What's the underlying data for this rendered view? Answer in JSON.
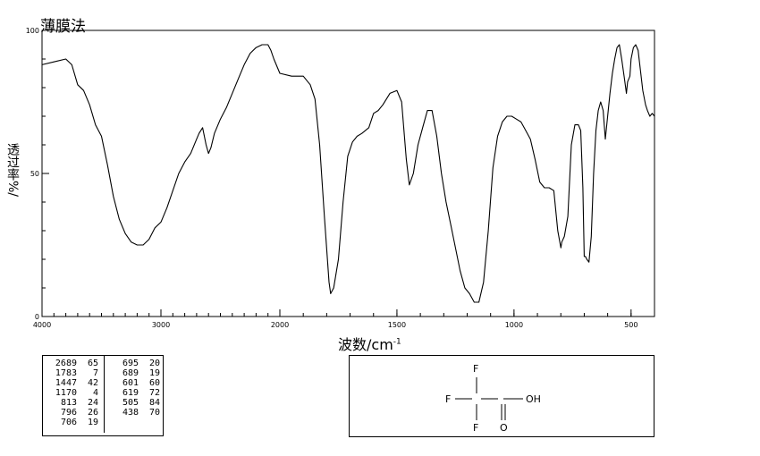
{
  "title": "薄膜法",
  "chart_data": {
    "type": "line",
    "xlabel": "波数/cm",
    "xlabel_sup": "-1",
    "ylabel": "透过率",
    "ylabel_prefix": "%/",
    "xlim": [
      4000,
      400
    ],
    "ylim": [
      0,
      100
    ],
    "x_ticks": [
      4000,
      3000,
      2000,
      1500,
      1000,
      500
    ],
    "x_tick_labels": [
      "4000",
      "3000",
      "2000",
      "1500",
      "1000",
      "500"
    ],
    "y_ticks": [
      0,
      50,
      100
    ],
    "y_tick_labels": [
      "0",
      "50",
      "100"
    ],
    "grid": false,
    "series": [
      {
        "x": [
          4000,
          3900,
          3800,
          3750,
          3700,
          3650,
          3600,
          3550,
          3500,
          3450,
          3400,
          3350,
          3300,
          3250,
          3200,
          3150,
          3100,
          3050,
          3000,
          2950,
          2900,
          2850,
          2800,
          2750,
          2700,
          2680,
          2650,
          2620,
          2600,
          2580,
          2550,
          2500,
          2450,
          2400,
          2350,
          2300,
          2250,
          2200,
          2150,
          2100,
          2075,
          2050,
          2000,
          1950,
          1900,
          1870,
          1850,
          1830,
          1810,
          1790,
          1783,
          1770,
          1750,
          1730,
          1710,
          1690,
          1670,
          1650,
          1620,
          1600,
          1580,
          1560,
          1530,
          1500,
          1480,
          1460,
          1447,
          1430,
          1410,
          1390,
          1370,
          1350,
          1330,
          1310,
          1290,
          1270,
          1250,
          1230,
          1210,
          1190,
          1170,
          1150,
          1130,
          1110,
          1090,
          1070,
          1050,
          1030,
          1010,
          990,
          970,
          950,
          930,
          910,
          890,
          870,
          850,
          830,
          813,
          800,
          796,
          785,
          770,
          755,
          740,
          725,
          715,
          706,
          700,
          695,
          689,
          680,
          670,
          660,
          650,
          640,
          630,
          619,
          610,
          600,
          590,
          580,
          570,
          560,
          550,
          540,
          530,
          520,
          515,
          505,
          500,
          490,
          480,
          470,
          460,
          450,
          438,
          430,
          420,
          410,
          400
        ],
        "y": [
          88,
          89,
          90,
          88,
          81,
          79,
          74,
          67,
          63,
          53,
          42,
          34,
          29,
          26,
          25,
          25,
          27,
          31,
          33,
          38,
          44,
          50,
          54,
          57,
          62,
          64,
          66,
          60,
          57,
          59,
          64,
          69,
          73,
          78,
          83,
          88,
          92,
          94,
          95,
          95,
          93,
          90,
          85,
          84,
          84,
          81,
          76,
          60,
          35,
          12,
          8,
          10,
          20,
          40,
          56,
          61,
          63,
          64,
          66,
          71,
          72,
          74,
          78,
          79,
          75,
          55,
          46,
          50,
          60,
          66,
          72,
          72,
          63,
          50,
          40,
          32,
          24,
          16,
          10,
          8,
          5,
          5,
          12,
          30,
          52,
          63,
          68,
          70,
          70,
          69,
          68,
          65,
          62,
          55,
          47,
          45,
          45,
          44,
          30,
          24,
          26,
          28,
          35,
          60,
          67,
          67,
          65,
          45,
          21,
          21,
          20,
          19,
          28,
          50,
          65,
          72,
          75,
          72,
          62,
          70,
          78,
          85,
          90,
          94,
          95,
          90,
          84,
          78,
          82,
          84,
          90,
          94,
          95,
          93,
          86,
          79,
          74,
          72,
          70,
          71,
          70
        ]
      }
    ]
  },
  "peak_table": {
    "columns": [
      [
        {
          "wavenumber": "2689",
          "transmittance": "65"
        },
        {
          "wavenumber": "1783",
          "transmittance": "7"
        },
        {
          "wavenumber": "1447",
          "transmittance": "42"
        },
        {
          "wavenumber": "1170",
          "transmittance": "4"
        },
        {
          "wavenumber": "813",
          "transmittance": "24"
        },
        {
          "wavenumber": "796",
          "transmittance": "26"
        },
        {
          "wavenumber": "706",
          "transmittance": "19"
        }
      ],
      [
        {
          "wavenumber": "695",
          "transmittance": "20"
        },
        {
          "wavenumber": "689",
          "transmittance": "19"
        },
        {
          "wavenumber": "601",
          "transmittance": "60"
        },
        {
          "wavenumber": "619",
          "transmittance": "72"
        },
        {
          "wavenumber": "505",
          "transmittance": "84"
        },
        {
          "wavenumber": "438",
          "transmittance": "70"
        }
      ]
    ]
  },
  "structure": {
    "atoms": {
      "f_top": "F",
      "f_left": "F",
      "f_bottom": "F",
      "o_carbonyl": "O",
      "oh": "OH"
    }
  }
}
